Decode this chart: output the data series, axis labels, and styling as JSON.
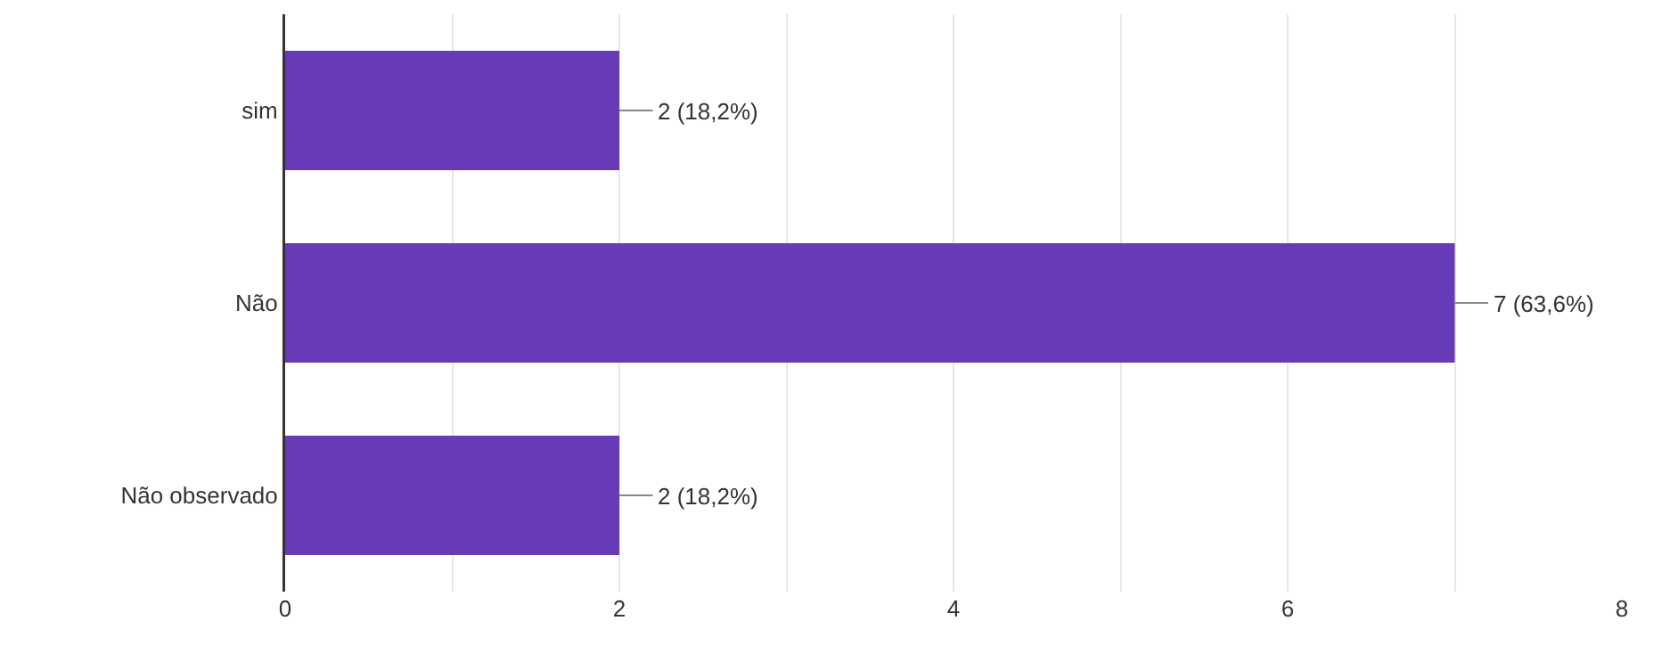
{
  "chart_data": {
    "type": "bar",
    "orientation": "horizontal",
    "categories": [
      "sim",
      "Não",
      "Não observado"
    ],
    "values": [
      2,
      7,
      2
    ],
    "color": "#673ab7",
    "value_labels": [
      "2 (18,2%)",
      "7 (63,6%)",
      "2 (18,2%)"
    ],
    "xlim": [
      0,
      8
    ],
    "xticks": [
      0,
      {
        "value": 1,
        "label": null
      },
      2,
      {
        "value": 3,
        "label": null
      },
      4,
      {
        "value": 5,
        "label": null
      },
      6,
      {
        "value": 7,
        "label": null
      },
      8
    ],
    "grid": "x"
  }
}
